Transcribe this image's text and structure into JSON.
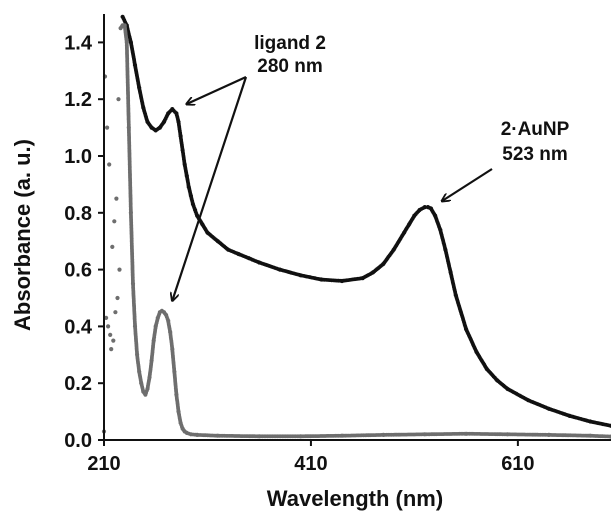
{
  "chart_data": {
    "type": "scatter",
    "title": "",
    "xlabel": "Wavelength  (nm)",
    "ylabel": "Absorbance  (a. u.)",
    "xlim": [
      210,
      700
    ],
    "ylim": [
      0,
      1.5
    ],
    "xticks": [
      "210",
      "410",
      "610"
    ],
    "xtick_values": [
      210,
      410,
      610
    ],
    "yticks": [
      "0.0",
      "0.2",
      "0.4",
      "0.6",
      "0.8",
      "1.0",
      "1.2",
      "1.4"
    ],
    "ytick_values": [
      0.0,
      0.2,
      0.4,
      0.6,
      0.8,
      1.0,
      1.2,
      1.4
    ],
    "grid": false,
    "series": [
      {
        "color": "#111111",
        "x": [
          228,
          232,
          236,
          240,
          244,
          248,
          252,
          256,
          260,
          264,
          268,
          272,
          276,
          280,
          282,
          284,
          286,
          288,
          290,
          292,
          294,
          296,
          298,
          300,
          305,
          310,
          320,
          330,
          340,
          350,
          360,
          380,
          400,
          420,
          440,
          460,
          470,
          480,
          490,
          500,
          505,
          510,
          515,
          520,
          523,
          526,
          530,
          535,
          540,
          545,
          550,
          560,
          570,
          580,
          590,
          600,
          620,
          640,
          660,
          680,
          700
        ],
        "values": [
          1.49,
          1.46,
          1.4,
          1.32,
          1.24,
          1.17,
          1.12,
          1.1,
          1.09,
          1.1,
          1.12,
          1.15,
          1.165,
          1.15,
          1.12,
          1.07,
          1.02,
          0.97,
          0.93,
          0.89,
          0.86,
          0.83,
          0.81,
          0.79,
          0.76,
          0.73,
          0.7,
          0.67,
          0.655,
          0.64,
          0.625,
          0.6,
          0.58,
          0.565,
          0.56,
          0.57,
          0.59,
          0.62,
          0.67,
          0.73,
          0.76,
          0.79,
          0.81,
          0.82,
          0.82,
          0.815,
          0.79,
          0.74,
          0.67,
          0.59,
          0.51,
          0.39,
          0.31,
          0.25,
          0.21,
          0.18,
          0.14,
          0.11,
          0.085,
          0.065,
          0.05
        ]
      },
      {
        "color": "#6e6e6e",
        "x": [
          210,
          211,
          212,
          213,
          214,
          215,
          216,
          217,
          218,
          219,
          220,
          221,
          222,
          223,
          224,
          225,
          226,
          228,
          230,
          232,
          234,
          236,
          238,
          240,
          242,
          244,
          246,
          248,
          250,
          252,
          254,
          256,
          258,
          260,
          262,
          264,
          266,
          268,
          270,
          272,
          274,
          276,
          278,
          280,
          282,
          284,
          286,
          288,
          290,
          294,
          300,
          320,
          360,
          400,
          440,
          480,
          520,
          560,
          600,
          640,
          680,
          700
        ],
        "values": [
          0.03,
          1.28,
          0.43,
          1.1,
          0.4,
          0.97,
          0.37,
          0.32,
          0.68,
          0.35,
          0.77,
          0.45,
          0.85,
          0.5,
          1.2,
          0.6,
          1.45,
          1.46,
          1.46,
          1.4,
          1.1,
          0.8,
          0.55,
          0.4,
          0.3,
          0.24,
          0.2,
          0.17,
          0.16,
          0.18,
          0.22,
          0.28,
          0.35,
          0.4,
          0.43,
          0.45,
          0.455,
          0.45,
          0.44,
          0.42,
          0.38,
          0.32,
          0.24,
          0.16,
          0.1,
          0.06,
          0.04,
          0.03,
          0.025,
          0.02,
          0.018,
          0.015,
          0.013,
          0.013,
          0.015,
          0.018,
          0.02,
          0.022,
          0.02,
          0.018,
          0.015,
          0.012
        ]
      }
    ],
    "annotations": [
      {
        "lines": [
          "ligand 2",
          "280 nm"
        ]
      },
      {
        "lines": [
          "2·AuNP",
          "523 nm"
        ]
      }
    ]
  }
}
